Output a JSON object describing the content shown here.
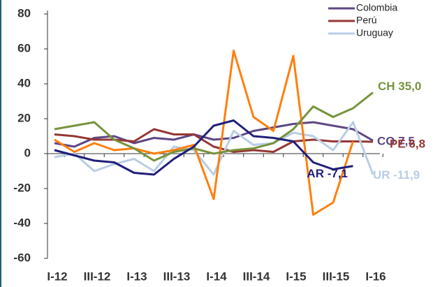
{
  "chart_data": {
    "type": "line",
    "categories": [
      "I-12",
      null,
      "III-12",
      null,
      "I-13",
      null,
      "III-13",
      null,
      "I-14",
      null,
      "III-14",
      null,
      "I-15",
      null,
      "III-15",
      null,
      "I-16"
    ],
    "ylim": [
      -60,
      80
    ],
    "yticks": [
      -60,
      -40,
      -20,
      0,
      20,
      40,
      60,
      80
    ],
    "series": [
      {
        "name": "Colombia",
        "color": "#5e4785",
        "values": [
          6,
          4,
          9,
          10,
          6,
          9,
          8,
          11,
          8,
          9,
          13,
          15,
          17,
          18,
          16,
          14,
          7.5
        ],
        "end_label": "CO 7,5"
      },
      {
        "name": "Perú",
        "color": "#953735",
        "values": [
          11,
          10,
          8,
          8,
          7,
          14,
          11,
          11,
          4,
          1,
          2,
          1,
          7,
          8,
          7,
          7,
          6.8
        ],
        "end_label": "PE 6,8"
      },
      {
        "name": "Uruguay",
        "color": "#b9cde5",
        "values": [
          -2,
          0,
          -10,
          -6,
          -3,
          -10,
          4,
          2,
          -12,
          13,
          5,
          6,
          12,
          10,
          2,
          18,
          -11.9
        ],
        "end_label": "UR -11,9"
      },
      {
        "color": "#ff7f0e",
        "values": [
          8,
          1,
          6,
          2,
          3,
          0,
          2,
          5,
          -26,
          59,
          21,
          13,
          56,
          -35,
          -28,
          7,
          null
        ]
      },
      {
        "color": "#77933c",
        "values": [
          14,
          16,
          18,
          8,
          3,
          -4,
          1,
          3,
          0,
          2,
          3,
          6,
          14,
          27,
          21,
          26,
          35
        ],
        "end_label": "CH 35,0"
      },
      {
        "color": "#1f1f7a",
        "values": [
          2,
          -1,
          -4,
          -5,
          -11,
          -12,
          -3,
          4,
          16,
          19,
          10,
          9,
          7,
          -5,
          -9,
          -7.1,
          null
        ],
        "end_label": "AR -7,1"
      }
    ]
  }
}
